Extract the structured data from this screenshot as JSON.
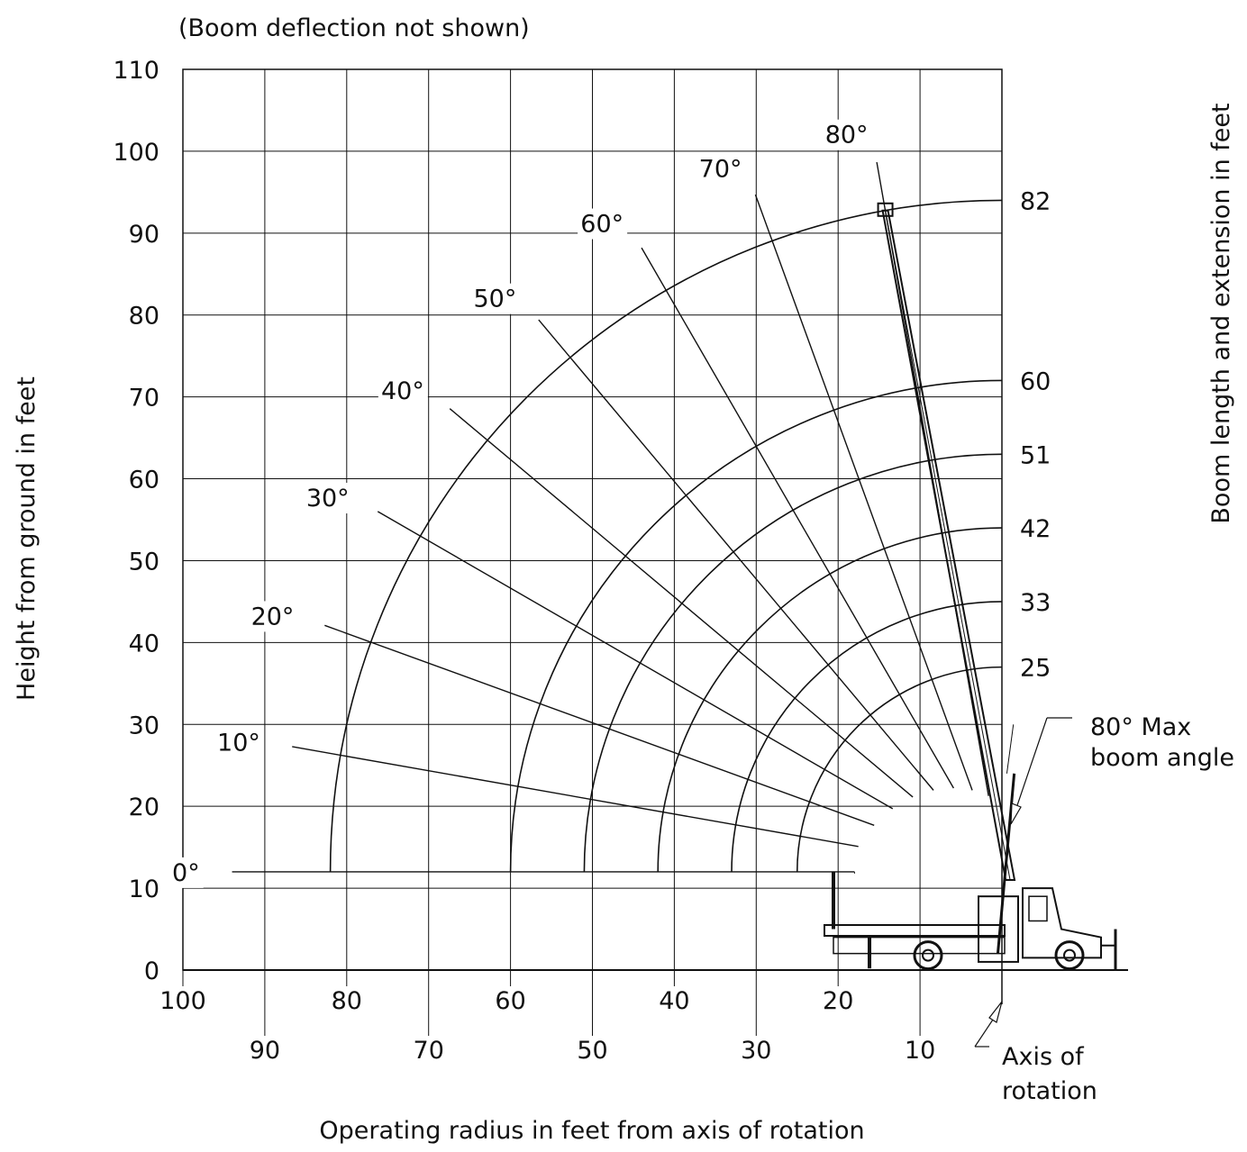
{
  "chart_data": {
    "type": "range_diagram",
    "note": "(Boom deflection not shown)",
    "xlabel": "Operating radius in feet from axis of rotation",
    "ylabel": "Height from ground in feet",
    "ylabel_right": "Boom length and extension in feet",
    "xlim": [
      0,
      100
    ],
    "ylim": [
      0,
      110
    ],
    "x_ticks_upper": [
      100,
      80,
      60,
      40,
      20
    ],
    "x_ticks_lower": [
      90,
      70,
      50,
      30,
      10
    ],
    "y_ticks": [
      0,
      10,
      20,
      30,
      40,
      50,
      60,
      70,
      80,
      90,
      100,
      110
    ],
    "pivot_height": 12,
    "boom_lengths": [
      25,
      33,
      42,
      51,
      60,
      82
    ],
    "boom_angles": [
      0,
      10,
      20,
      30,
      40,
      50,
      60,
      70,
      80
    ],
    "angle_labels": [
      "0°",
      "10°",
      "20°",
      "30°",
      "40°",
      "50°",
      "60°",
      "70°",
      "80°"
    ],
    "annotations": {
      "max_angle": [
        "80° Max",
        "boom angle"
      ],
      "axis": [
        "Axis of",
        "rotation"
      ]
    },
    "colors": {
      "ink": "#111111",
      "background": "#ffffff"
    }
  }
}
